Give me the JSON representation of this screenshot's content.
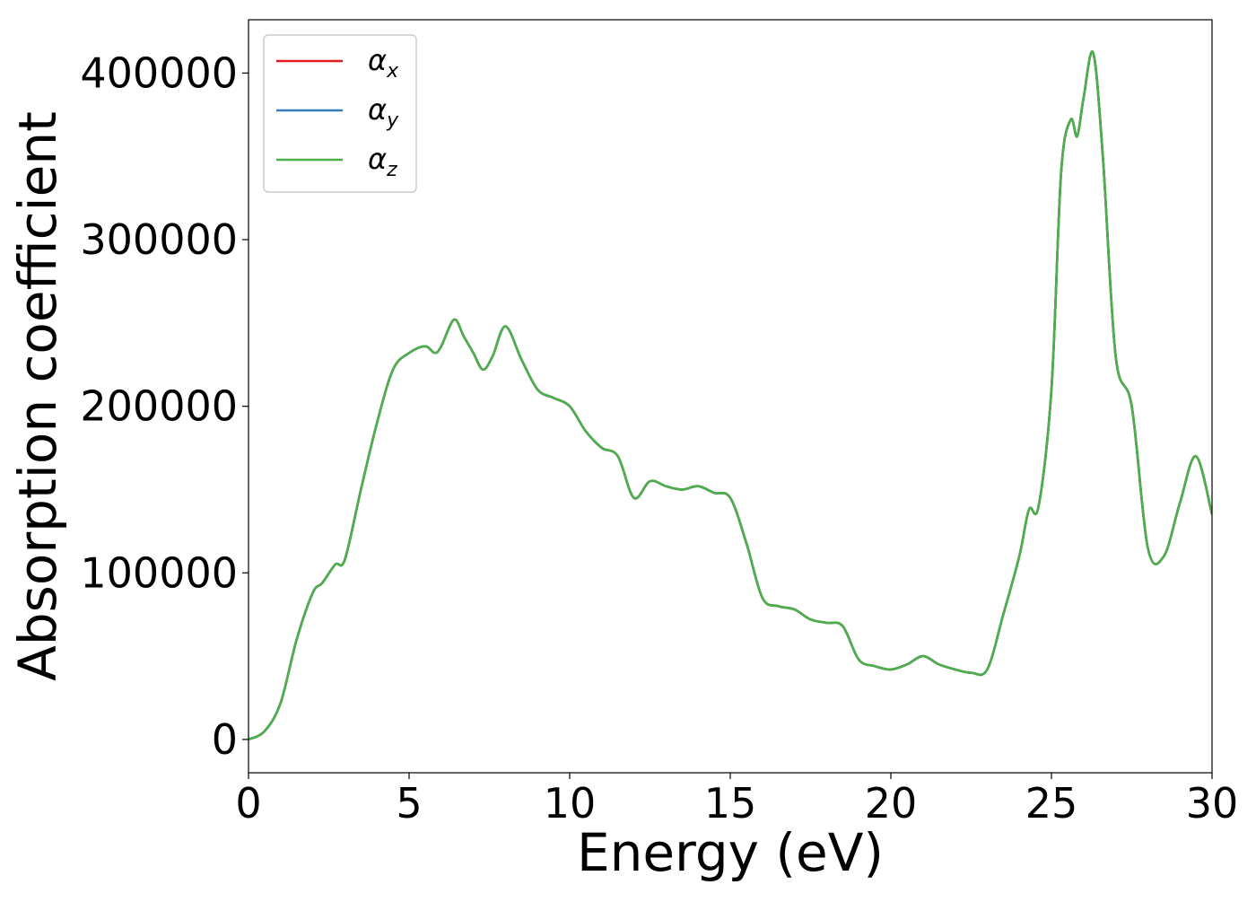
{
  "chart_data": {
    "type": "line",
    "xlabel": "Energy (eV)",
    "ylabel": "Absorption coefficient",
    "xlim": [
      0,
      30
    ],
    "ylim": [
      -20000,
      432000
    ],
    "xticks": [
      0,
      5,
      10,
      15,
      20,
      25,
      30
    ],
    "yticks": [
      0,
      100000,
      200000,
      300000,
      400000
    ],
    "grid": false,
    "legend_position": "top-left",
    "x": [
      0,
      0.5,
      1.0,
      1.5,
      2.0,
      2.3,
      2.7,
      3.0,
      3.5,
      4.0,
      4.5,
      5.0,
      5.5,
      5.8,
      6.0,
      6.4,
      6.7,
      7.0,
      7.3,
      7.6,
      8.0,
      8.5,
      9.0,
      9.5,
      10.0,
      10.5,
      11.0,
      11.5,
      12.0,
      12.5,
      13.0,
      13.5,
      14.0,
      14.5,
      15.0,
      15.5,
      16.0,
      16.5,
      17.0,
      17.5,
      18.0,
      18.5,
      19.0,
      19.5,
      20.0,
      20.5,
      21.0,
      21.5,
      22.0,
      22.5,
      23.0,
      23.5,
      24.0,
      24.3,
      24.6,
      25.0,
      25.3,
      25.6,
      25.8,
      26.0,
      26.3,
      26.6,
      27.0,
      27.5,
      28.0,
      28.5,
      29.0,
      29.5,
      30.0
    ],
    "series": [
      {
        "name": "α_x",
        "label_main": "α",
        "label_sub": "x",
        "color": "#e41a1c",
        "values": [
          0,
          5000,
          22000,
          60000,
          88000,
          94000,
          105000,
          108000,
          150000,
          190000,
          222000,
          232000,
          236000,
          232000,
          236000,
          252000,
          242000,
          232000,
          222000,
          230000,
          248000,
          228000,
          210000,
          205000,
          200000,
          185000,
          175000,
          170000,
          145000,
          155000,
          152000,
          150000,
          152000,
          148000,
          145000,
          118000,
          85000,
          80000,
          78000,
          72000,
          70000,
          68000,
          48000,
          44000,
          42000,
          45000,
          50000,
          45000,
          42000,
          40000,
          42000,
          75000,
          110000,
          138000,
          140000,
          210000,
          340000,
          372000,
          362000,
          385000,
          412000,
          350000,
          230000,
          200000,
          115000,
          110000,
          142000,
          170000,
          135000
        ]
      },
      {
        "name": "α_y",
        "label_main": "α",
        "label_sub": "y",
        "color": "#377eb8",
        "values": [
          0,
          5000,
          22000,
          60000,
          88000,
          94000,
          105000,
          108000,
          150000,
          190000,
          222000,
          232000,
          236000,
          232000,
          236000,
          252000,
          242000,
          232000,
          222000,
          230000,
          248000,
          228000,
          210000,
          205000,
          200000,
          185000,
          175000,
          170000,
          145000,
          155000,
          152000,
          150000,
          152000,
          148000,
          145000,
          118000,
          85000,
          80000,
          78000,
          72000,
          70000,
          68000,
          48000,
          44000,
          42000,
          45000,
          50000,
          45000,
          42000,
          40000,
          42000,
          75000,
          110000,
          138000,
          140000,
          210000,
          340000,
          372000,
          362000,
          385000,
          412000,
          350000,
          230000,
          200000,
          115000,
          110000,
          142000,
          170000,
          135000
        ]
      },
      {
        "name": "α_z",
        "label_main": "α",
        "label_sub": "z",
        "color": "#4daf4a",
        "values": [
          0,
          5000,
          22000,
          60000,
          88000,
          94000,
          105000,
          108000,
          150000,
          190000,
          222000,
          232000,
          236000,
          232000,
          236000,
          252000,
          242000,
          232000,
          222000,
          230000,
          248000,
          228000,
          210000,
          205000,
          200000,
          185000,
          175000,
          170000,
          145000,
          155000,
          152000,
          150000,
          152000,
          148000,
          145000,
          118000,
          85000,
          80000,
          78000,
          72000,
          70000,
          68000,
          48000,
          44000,
          42000,
          45000,
          50000,
          45000,
          42000,
          40000,
          42000,
          75000,
          110000,
          138000,
          140000,
          210000,
          340000,
          372000,
          362000,
          385000,
          412000,
          350000,
          230000,
          200000,
          115000,
          110000,
          142000,
          170000,
          135000
        ]
      }
    ],
    "colors": {
      "axis": "#000000",
      "background": "#ffffff",
      "legend_border": "#cccccc"
    }
  }
}
